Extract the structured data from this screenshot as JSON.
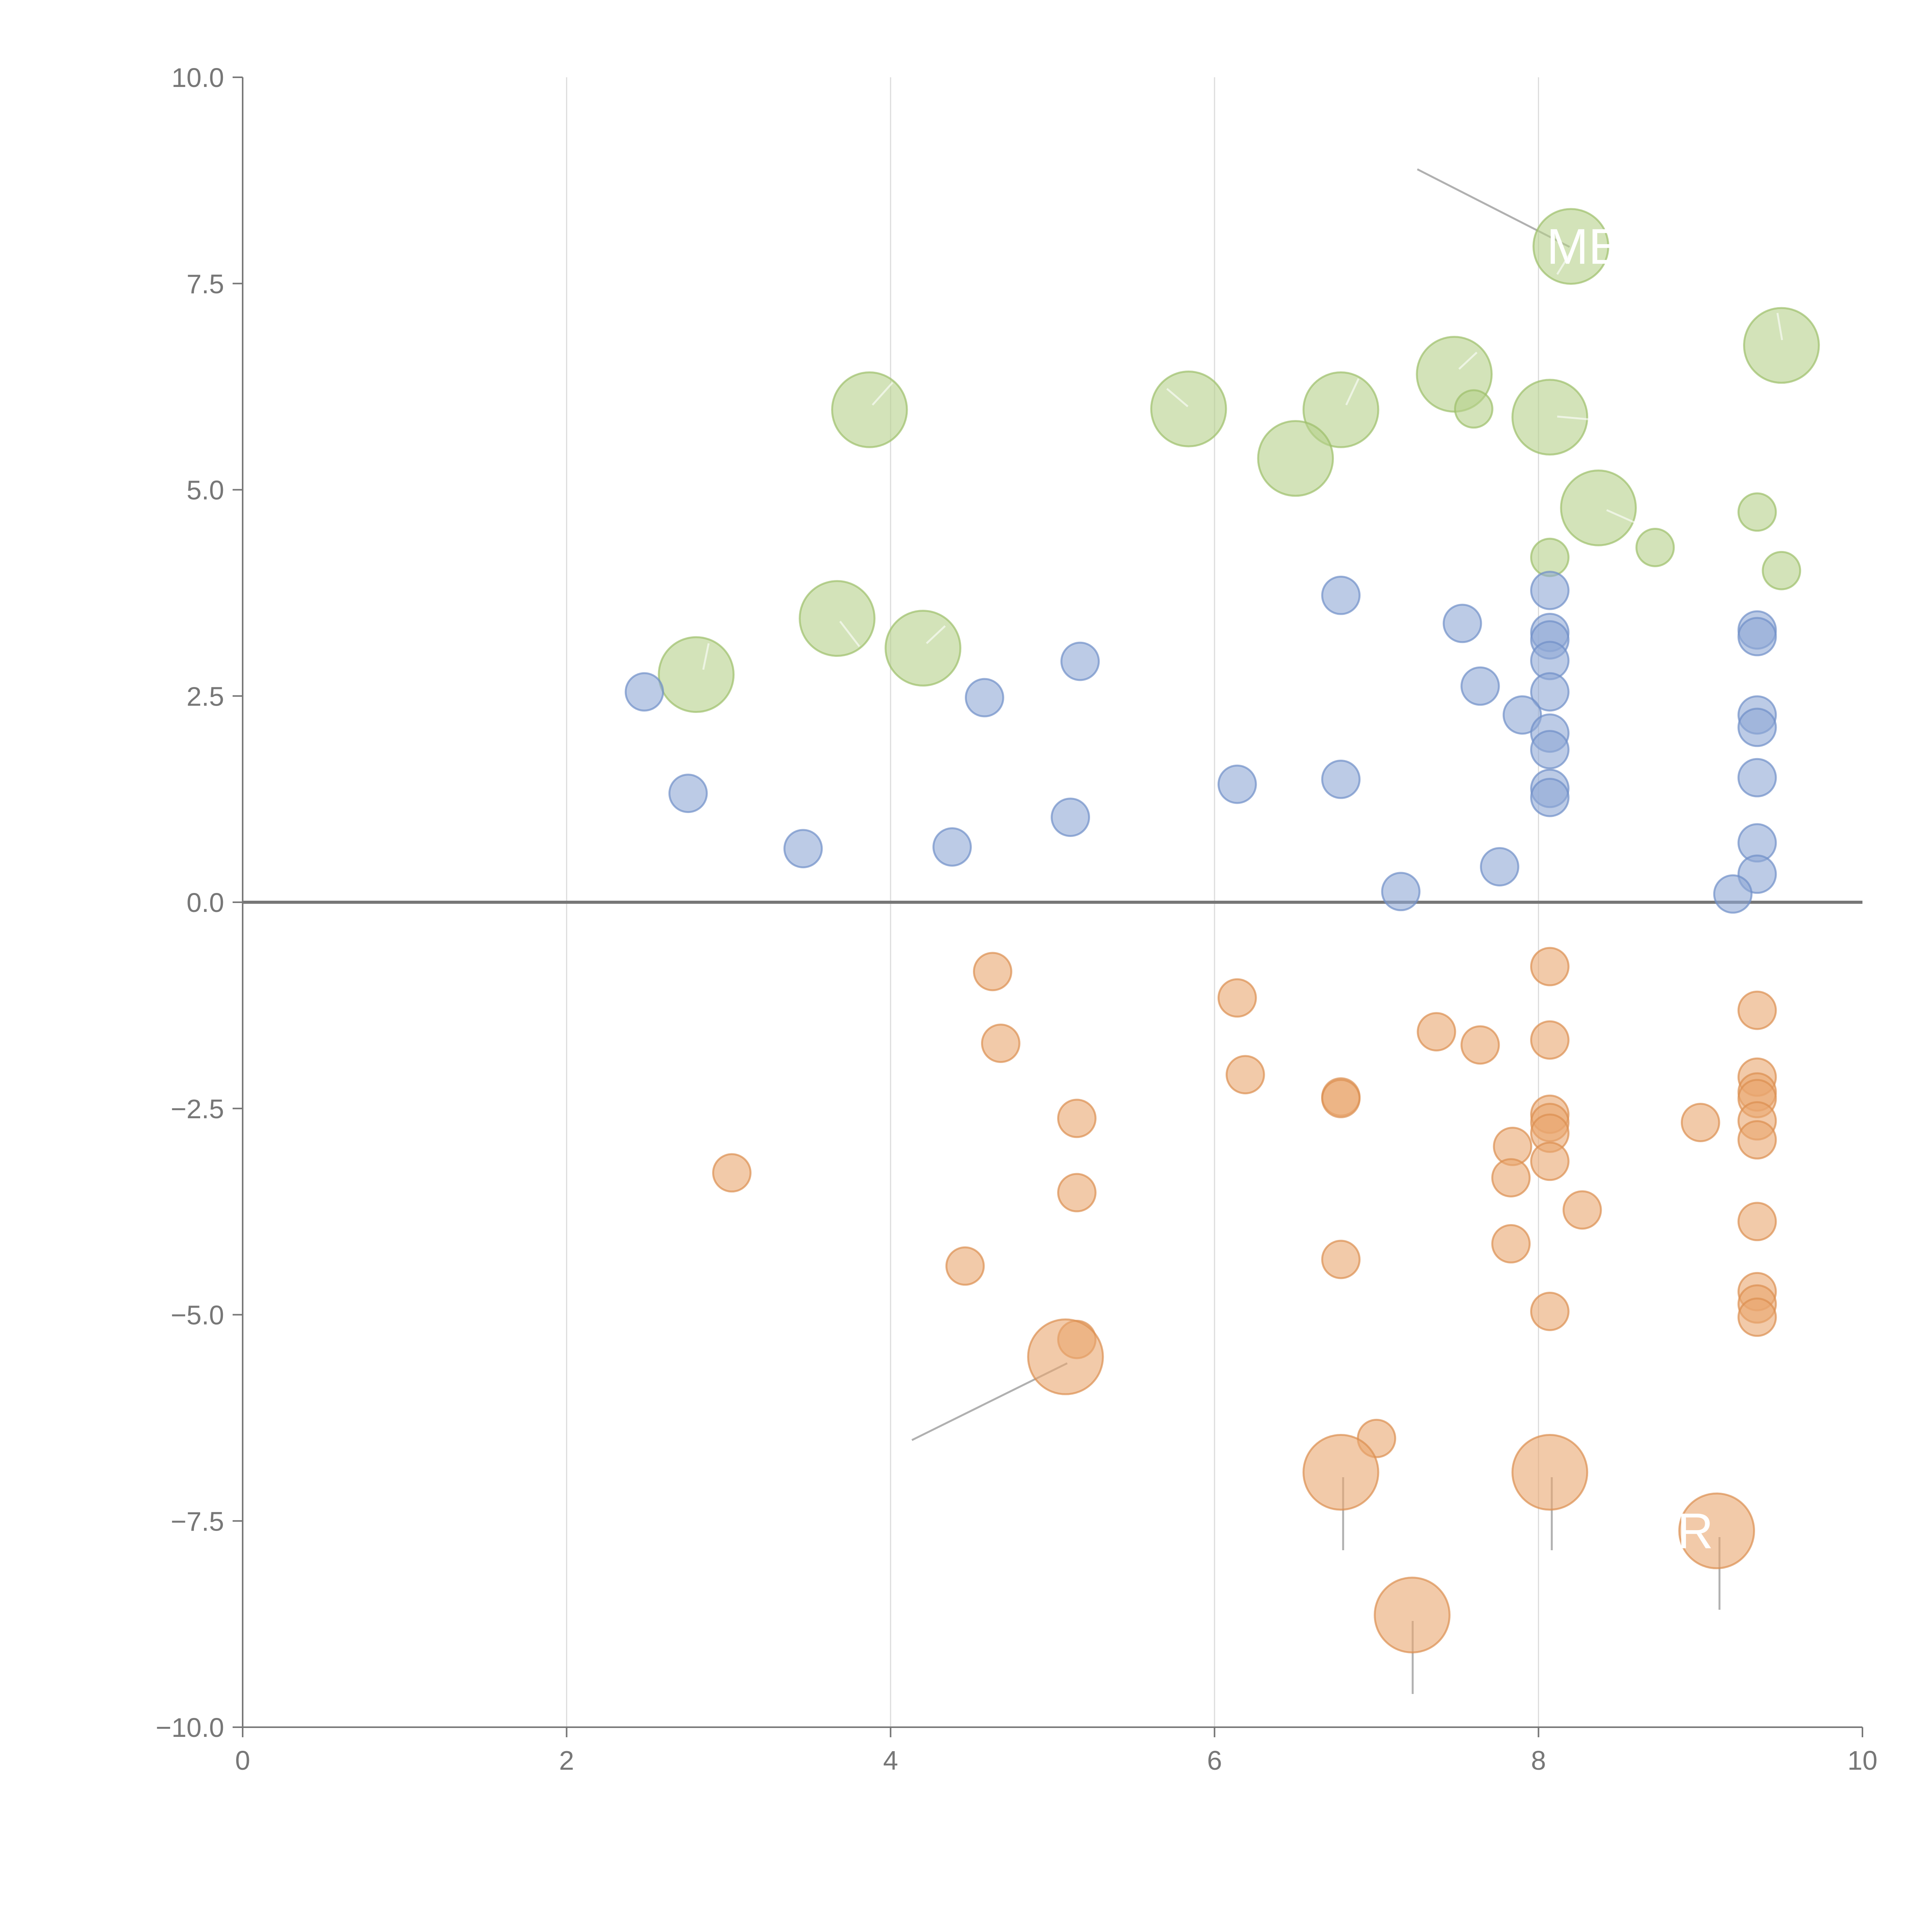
{
  "chart_data": {
    "type": "scatter",
    "title": "",
    "xlabel": "",
    "ylabel": "",
    "xlim": [
      0,
      10
    ],
    "ylim": [
      -10,
      10
    ],
    "x_ticks": [
      "0",
      "2",
      "4",
      "6",
      "8",
      "10"
    ],
    "x_tick_values": [
      0,
      2,
      4,
      6,
      8,
      10
    ],
    "y_ticks": [
      "10.0",
      "7.5",
      "5.0",
      "2.5",
      "0.0",
      "−2.5",
      "−5.0",
      "−7.5",
      "−10.0"
    ],
    "y_tick_values": [
      10,
      7.5,
      5,
      2.5,
      0,
      -2.5,
      -5,
      -7.5,
      -10
    ],
    "grid": "vertical",
    "colors": {
      "green": "#b5d08a",
      "green_stroke": "#9cbf6a",
      "blue": "#8fa9d6",
      "blue_stroke": "#6f8fc8",
      "orange": "#eaa770",
      "orange_stroke": "#dc8f50"
    },
    "series": [
      {
        "name": "green",
        "color_key": "green",
        "points": [
          [
            8.2,
            7.95,
            2.2
          ],
          [
            9.5,
            6.75,
            2.2
          ],
          [
            3.87,
            5.97,
            2.2
          ],
          [
            5.84,
            5.98,
            2.2
          ],
          [
            6.78,
            5.97,
            2.2
          ],
          [
            7.48,
            6.4,
            2.2
          ],
          [
            8.07,
            5.88,
            2.2
          ],
          [
            6.5,
            5.38,
            2.2
          ],
          [
            8.37,
            4.78,
            2.2
          ],
          [
            7.6,
            5.98,
            1.1
          ],
          [
            9.35,
            4.73,
            1.1
          ],
          [
            8.72,
            4.3,
            1.1
          ],
          [
            8.07,
            4.18,
            1.1
          ],
          [
            9.5,
            4.02,
            1.1
          ],
          [
            3.67,
            3.44,
            2.2
          ],
          [
            4.2,
            3.08,
            2.2
          ],
          [
            2.8,
            2.76,
            2.2
          ]
        ]
      },
      {
        "name": "blue",
        "color_key": "blue",
        "points": [
          [
            6.78,
            3.72,
            1.1
          ],
          [
            8.07,
            3.78,
            1.1
          ],
          [
            7.53,
            3.38,
            1.1
          ],
          [
            8.07,
            3.27,
            1.1
          ],
          [
            8.07,
            3.18,
            1.1
          ],
          [
            8.07,
            2.93,
            1.1
          ],
          [
            5.17,
            2.92,
            1.1
          ],
          [
            9.35,
            3.3,
            1.1
          ],
          [
            9.35,
            3.22,
            1.1
          ],
          [
            2.48,
            2.55,
            1.1
          ],
          [
            4.58,
            2.48,
            1.1
          ],
          [
            7.64,
            2.62,
            1.1
          ],
          [
            8.07,
            2.55,
            1.1
          ],
          [
            7.9,
            2.27,
            1.1
          ],
          [
            9.35,
            2.27,
            1.1
          ],
          [
            9.35,
            2.12,
            1.1
          ],
          [
            8.07,
            2.05,
            1.1
          ],
          [
            8.07,
            1.85,
            1.1
          ],
          [
            6.14,
            1.43,
            1.1
          ],
          [
            6.78,
            1.49,
            1.1
          ],
          [
            9.35,
            1.51,
            1.1
          ],
          [
            2.75,
            1.32,
            1.1
          ],
          [
            8.07,
            1.38,
            1.1
          ],
          [
            8.07,
            1.27,
            1.1
          ],
          [
            5.11,
            1.03,
            1.1
          ],
          [
            3.46,
            0.65,
            1.1
          ],
          [
            4.38,
            0.67,
            1.1
          ],
          [
            9.35,
            0.72,
            1.1
          ],
          [
            7.76,
            0.43,
            1.1
          ],
          [
            9.35,
            0.34,
            1.1
          ],
          [
            7.15,
            0.13,
            1.1
          ],
          [
            9.2,
            0.1,
            1.1
          ]
        ]
      },
      {
        "name": "orange",
        "color_key": "orange",
        "points": [
          [
            4.63,
            -0.84,
            1.1
          ],
          [
            8.07,
            -0.78,
            1.1
          ],
          [
            6.14,
            -1.16,
            1.1
          ],
          [
            9.35,
            -1.31,
            1.1
          ],
          [
            7.37,
            -1.57,
            1.1
          ],
          [
            4.68,
            -1.71,
            1.1
          ],
          [
            7.64,
            -1.73,
            1.1
          ],
          [
            8.07,
            -1.67,
            1.1
          ],
          [
            6.19,
            -2.09,
            1.1
          ],
          [
            9.35,
            -2.12,
            1.1
          ],
          [
            6.78,
            -2.36,
            1.1
          ],
          [
            6.78,
            -2.38,
            1.1
          ],
          [
            9.35,
            -2.3,
            1.1
          ],
          [
            9.35,
            -2.38,
            1.1
          ],
          [
            5.15,
            -2.62,
            1.1
          ],
          [
            8.07,
            -2.57,
            1.1
          ],
          [
            8.07,
            -2.67,
            1.1
          ],
          [
            9.0,
            -2.67,
            1.1
          ],
          [
            9.35,
            -2.65,
            1.1
          ],
          [
            8.07,
            -2.8,
            1.1
          ],
          [
            7.84,
            -2.96,
            1.1
          ],
          [
            9.35,
            -2.88,
            1.1
          ],
          [
            8.07,
            -3.14,
            1.1
          ],
          [
            3.02,
            -3.28,
            1.1
          ],
          [
            7.83,
            -3.34,
            1.1
          ],
          [
            5.15,
            -3.52,
            1.1
          ],
          [
            8.27,
            -3.73,
            1.1
          ],
          [
            9.35,
            -3.87,
            1.1
          ],
          [
            7.83,
            -4.14,
            1.1
          ],
          [
            6.78,
            -4.33,
            1.1
          ],
          [
            4.46,
            -4.41,
            1.1
          ],
          [
            9.35,
            -4.72,
            1.1
          ],
          [
            9.35,
            -4.87,
            1.1
          ],
          [
            8.07,
            -4.96,
            1.1
          ],
          [
            9.35,
            -5.03,
            1.1
          ],
          [
            5.15,
            -5.3,
            1.1
          ],
          [
            5.08,
            -5.51,
            2.2
          ],
          [
            7.0,
            -6.5,
            1.1
          ],
          [
            6.78,
            -6.91,
            2.2
          ],
          [
            8.07,
            -6.91,
            2.2
          ],
          [
            9.1,
            -7.62,
            2.2
          ],
          [
            7.22,
            -8.64,
            2.2
          ]
        ]
      }
    ],
    "annotations": [
      "ME",
      "R"
    ]
  }
}
